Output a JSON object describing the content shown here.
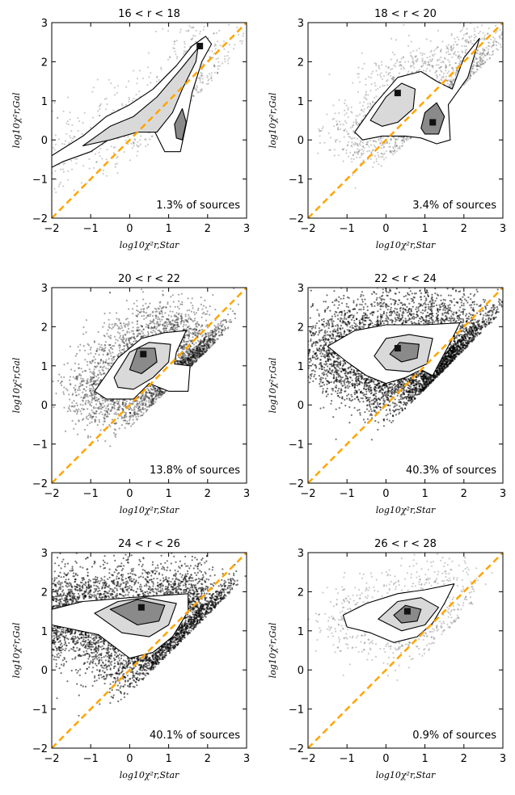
{
  "figure": {
    "x_axis_label": "log10χ²r,Star",
    "y_axis_label": "log10χ²r,Gal",
    "colors": {
      "diagonal": "#ffa500",
      "contour": "#000000",
      "axes": "#000000"
    }
  },
  "chart_data": [
    {
      "type": "scatter",
      "title": "16 < r < 18",
      "annotation": "1.3% of sources",
      "xlabel": "log10χ²r,Star",
      "ylabel": "log10χ²r,Gal",
      "xlim": [
        -2,
        3
      ],
      "ylim": [
        -2,
        3
      ],
      "xticks": [
        -2,
        -1,
        0,
        1,
        2,
        3
      ],
      "yticks": [
        -2,
        -1,
        0,
        1,
        2,
        3
      ],
      "reference_line": {
        "x": [
          -2,
          3
        ],
        "y": [
          -2,
          3
        ],
        "style": "dashed"
      },
      "density": "low",
      "contour_levels": [
        [
          [
            -2.0,
            -0.4
          ],
          [
            -1.2,
            0.1
          ],
          [
            -0.6,
            0.6
          ],
          [
            0.0,
            0.9
          ],
          [
            0.6,
            1.3
          ],
          [
            1.2,
            1.9
          ],
          [
            1.6,
            2.4
          ],
          [
            1.95,
            2.65
          ],
          [
            2.1,
            2.45
          ],
          [
            1.85,
            2.0
          ],
          [
            1.6,
            1.2
          ],
          [
            1.45,
            0.4
          ],
          [
            1.3,
            -0.3
          ],
          [
            0.9,
            -0.3
          ],
          [
            0.6,
            0.3
          ],
          [
            0.2,
            0.5
          ],
          [
            -0.4,
            0.1
          ],
          [
            -1.0,
            -0.3
          ],
          [
            -1.7,
            -0.55
          ],
          [
            -2.0,
            -0.7
          ]
        ],
        [
          [
            -1.2,
            -0.15
          ],
          [
            -0.5,
            0.35
          ],
          [
            0.1,
            0.6
          ],
          [
            0.7,
            1.1
          ],
          [
            1.3,
            1.8
          ],
          [
            1.75,
            2.35
          ],
          [
            1.7,
            2.0
          ],
          [
            1.35,
            1.3
          ],
          [
            1.1,
            0.7
          ],
          [
            0.7,
            0.2
          ],
          [
            0.2,
            0.2
          ],
          [
            -0.5,
            0.0
          ]
        ],
        [
          [
            1.15,
            0.4
          ],
          [
            1.35,
            0.8
          ],
          [
            1.45,
            0.45
          ],
          [
            1.35,
            0.0
          ],
          [
            1.2,
            0.05
          ]
        ]
      ],
      "peaks": [
        {
          "x": 1.8,
          "y": 2.4
        }
      ]
    },
    {
      "type": "scatter",
      "title": "18 < r < 20",
      "annotation": "3.4% of sources",
      "xlabel": "log10χ²r,Star",
      "ylabel": "log10χ²r,Gal",
      "xlim": [
        -2,
        3
      ],
      "ylim": [
        -2,
        3
      ],
      "xticks": [
        -2,
        -1,
        0,
        1,
        2,
        3
      ],
      "yticks": [
        -2,
        -1,
        0,
        1,
        2,
        3
      ],
      "reference_line": {
        "x": [
          -2,
          3
        ],
        "y": [
          -2,
          3
        ],
        "style": "dashed"
      },
      "density": "medium",
      "contour_levels": [
        [
          [
            -0.8,
            0.2
          ],
          [
            -0.3,
            0.9
          ],
          [
            0.3,
            1.6
          ],
          [
            0.9,
            1.75
          ],
          [
            1.3,
            1.5
          ],
          [
            1.7,
            1.3
          ],
          [
            2.0,
            2.1
          ],
          [
            2.4,
            2.6
          ],
          [
            2.1,
            1.6
          ],
          [
            1.6,
            0.9
          ],
          [
            1.65,
            0.0
          ],
          [
            1.3,
            -0.1
          ],
          [
            0.9,
            0.05
          ],
          [
            0.5,
            0.1
          ],
          [
            -0.1,
            0.1
          ],
          [
            -0.6,
            0.0
          ]
        ],
        [
          [
            -0.4,
            0.5
          ],
          [
            0.0,
            1.1
          ],
          [
            0.4,
            1.45
          ],
          [
            0.75,
            1.3
          ],
          [
            0.7,
            0.8
          ],
          [
            0.3,
            0.45
          ],
          [
            -0.1,
            0.35
          ]
        ],
        [
          [
            0.9,
            0.3
          ],
          [
            1.0,
            0.7
          ],
          [
            1.3,
            0.95
          ],
          [
            1.5,
            0.6
          ],
          [
            1.35,
            0.15
          ],
          [
            1.0,
            0.15
          ]
        ]
      ],
      "peaks": [
        {
          "x": 0.3,
          "y": 1.2
        },
        {
          "x": 1.2,
          "y": 0.45
        }
      ]
    },
    {
      "type": "scatter",
      "title": "20 < r < 22",
      "annotation": "13.8% of sources",
      "xlabel": "log10χ²r,Star",
      "ylabel": "log10χ²r,Gal",
      "xlim": [
        -2,
        3
      ],
      "ylim": [
        -2,
        3
      ],
      "xticks": [
        -2,
        -1,
        0,
        1,
        2,
        3
      ],
      "yticks": [
        -2,
        -1,
        0,
        1,
        2,
        3
      ],
      "reference_line": {
        "x": [
          -2,
          3
        ],
        "y": [
          -2,
          3
        ],
        "style": "dashed"
      },
      "density": "high",
      "contour_levels": [
        [
          [
            -0.9,
            0.35
          ],
          [
            -0.3,
            1.2
          ],
          [
            0.3,
            1.7
          ],
          [
            0.9,
            1.85
          ],
          [
            1.45,
            1.9
          ],
          [
            1.2,
            1.35
          ],
          [
            1.15,
            1.05
          ],
          [
            1.55,
            1.0
          ],
          [
            1.5,
            0.35
          ],
          [
            1.0,
            0.35
          ],
          [
            0.5,
            0.55
          ],
          [
            0.1,
            0.15
          ],
          [
            -0.6,
            0.15
          ]
        ],
        [
          [
            -0.4,
            0.7
          ],
          [
            0.0,
            1.35
          ],
          [
            0.5,
            1.6
          ],
          [
            1.05,
            1.55
          ],
          [
            1.0,
            1.1
          ],
          [
            0.6,
            0.7
          ],
          [
            0.1,
            0.4
          ],
          [
            -0.3,
            0.45
          ]
        ],
        [
          [
            0.0,
            0.9
          ],
          [
            0.2,
            1.45
          ],
          [
            0.65,
            1.45
          ],
          [
            0.7,
            1.1
          ],
          [
            0.3,
            0.8
          ]
        ]
      ],
      "peaks": [
        {
          "x": 0.35,
          "y": 1.3
        }
      ]
    },
    {
      "type": "scatter",
      "title": "22 < r < 24",
      "annotation": "40.3% of sources",
      "xlabel": "log10χ²r,Star",
      "ylabel": "log10χ²r,Gal",
      "xlim": [
        -2,
        3
      ],
      "ylim": [
        -2,
        3
      ],
      "xticks": [
        -2,
        -1,
        0,
        1,
        2,
        3
      ],
      "yticks": [
        -2,
        -1,
        0,
        1,
        2,
        3
      ],
      "reference_line": {
        "x": [
          -2,
          3
        ],
        "y": [
          -2,
          3
        ],
        "style": "dashed"
      },
      "density": "very-high",
      "contour_levels": [
        [
          [
            -1.5,
            1.5
          ],
          [
            -0.8,
            1.9
          ],
          [
            0.0,
            2.05
          ],
          [
            1.0,
            2.05
          ],
          [
            1.9,
            2.1
          ],
          [
            1.6,
            1.5
          ],
          [
            1.3,
            0.95
          ],
          [
            1.2,
            0.75
          ],
          [
            0.9,
            0.9
          ],
          [
            0.5,
            0.7
          ],
          [
            0.0,
            0.55
          ],
          [
            -0.5,
            0.75
          ],
          [
            -1.0,
            1.1
          ]
        ],
        [
          [
            -0.3,
            1.25
          ],
          [
            0.0,
            1.7
          ],
          [
            0.6,
            1.8
          ],
          [
            1.2,
            1.7
          ],
          [
            1.05,
            1.05
          ],
          [
            0.6,
            0.85
          ],
          [
            0.0,
            0.9
          ]
        ],
        [
          [
            0.1,
            1.3
          ],
          [
            0.35,
            1.6
          ],
          [
            0.85,
            1.55
          ],
          [
            0.8,
            1.2
          ],
          [
            0.4,
            1.1
          ]
        ]
      ],
      "peaks": [
        {
          "x": 0.3,
          "y": 1.45
        }
      ]
    },
    {
      "type": "scatter",
      "title": "24 < r < 26",
      "annotation": "40.1% of sources",
      "xlabel": "log10χ²r,Star",
      "ylabel": "log10χ²r,Gal",
      "xlim": [
        -2,
        3
      ],
      "ylim": [
        -2,
        3
      ],
      "xticks": [
        -2,
        -1,
        0,
        1,
        2,
        3
      ],
      "yticks": [
        -2,
        -1,
        0,
        1,
        2,
        3
      ],
      "reference_line": {
        "x": [
          -2,
          3
        ],
        "y": [
          -2,
          3
        ],
        "style": "dashed"
      },
      "density": "very-high",
      "contour_levels": [
        [
          [
            -2.0,
            1.55
          ],
          [
            -1.2,
            1.75
          ],
          [
            0.0,
            1.85
          ],
          [
            1.5,
            1.95
          ],
          [
            1.5,
            1.5
          ],
          [
            1.1,
            0.85
          ],
          [
            0.6,
            0.45
          ],
          [
            0.0,
            0.3
          ],
          [
            -0.8,
            0.9
          ],
          [
            -2.0,
            1.15
          ]
        ],
        [
          [
            -0.9,
            1.45
          ],
          [
            -0.3,
            1.75
          ],
          [
            0.4,
            1.85
          ],
          [
            1.2,
            1.7
          ],
          [
            1.0,
            1.15
          ],
          [
            0.5,
            0.85
          ],
          [
            -0.2,
            0.95
          ]
        ],
        [
          [
            -0.5,
            1.55
          ],
          [
            0.2,
            1.8
          ],
          [
            0.9,
            1.65
          ],
          [
            0.75,
            1.25
          ],
          [
            0.2,
            1.15
          ]
        ]
      ],
      "peaks": [
        {
          "x": 0.3,
          "y": 1.6
        }
      ]
    },
    {
      "type": "scatter",
      "title": "26 < r < 28",
      "annotation": "0.9% of sources",
      "xlabel": "log10χ²r,Star",
      "ylabel": "log10χ²r,Gal",
      "xlim": [
        -2,
        3
      ],
      "ylim": [
        -2,
        3
      ],
      "xticks": [
        -2,
        -1,
        0,
        1,
        2,
        3
      ],
      "yticks": [
        -2,
        -1,
        0,
        1,
        2,
        3
      ],
      "reference_line": {
        "x": [
          -2,
          3
        ],
        "y": [
          -2,
          3
        ],
        "style": "dashed"
      },
      "density": "low",
      "contour_levels": [
        [
          [
            -1.1,
            1.4
          ],
          [
            -0.5,
            1.7
          ],
          [
            0.3,
            1.95
          ],
          [
            1.0,
            2.05
          ],
          [
            1.75,
            2.2
          ],
          [
            1.5,
            1.7
          ],
          [
            1.2,
            1.2
          ],
          [
            0.8,
            0.85
          ],
          [
            0.2,
            0.7
          ],
          [
            -0.4,
            0.95
          ],
          [
            -1.0,
            1.1
          ]
        ],
        [
          [
            -0.2,
            1.3
          ],
          [
            0.3,
            1.75
          ],
          [
            0.9,
            1.85
          ],
          [
            1.35,
            1.6
          ],
          [
            1.0,
            1.15
          ],
          [
            0.4,
            1.0
          ]
        ],
        [
          [
            0.2,
            1.4
          ],
          [
            0.5,
            1.65
          ],
          [
            0.9,
            1.55
          ],
          [
            0.8,
            1.25
          ],
          [
            0.4,
            1.2
          ]
        ]
      ],
      "peaks": [
        {
          "x": 0.55,
          "y": 1.5
        }
      ]
    }
  ]
}
